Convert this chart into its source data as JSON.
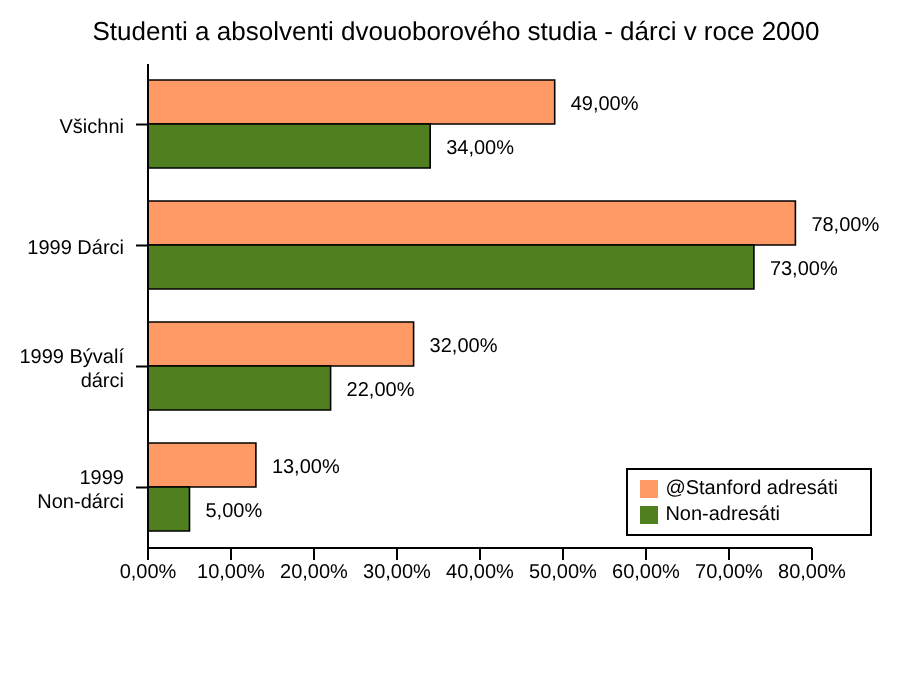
{
  "chart_data": {
    "type": "bar",
    "orientation": "horizontal",
    "title": "Studenti a absolventi dvouoborového studia - dárci v roce 2000",
    "categories": [
      "Všichni",
      "1999 Dárci",
      "1999 Bývalí dárci",
      "1999 Non-dárci"
    ],
    "series": [
      {
        "name": "@Stanford adresáti",
        "color": "#ff9966",
        "values": [
          49,
          78,
          32,
          13
        ],
        "value_labels": [
          "49,00%",
          "78,00%",
          "32,00%",
          "13,00%"
        ]
      },
      {
        "name": "Non-adresáti",
        "color": "#4f7f1f",
        "values": [
          34,
          73,
          22,
          5
        ],
        "value_labels": [
          "34,00%",
          "73,00%",
          "22,00%",
          "5,00%"
        ]
      }
    ],
    "xlim": [
      0,
      80
    ],
    "xticks": [
      {
        "value": 0,
        "label": "0,00%"
      },
      {
        "value": 10,
        "label": "10,00%"
      },
      {
        "value": 20,
        "label": "20,00%"
      },
      {
        "value": 30,
        "label": "30,00%"
      },
      {
        "value": 40,
        "label": "40,00%"
      },
      {
        "value": 50,
        "label": "50,00%"
      },
      {
        "value": 60,
        "label": "60,00%"
      },
      {
        "value": 70,
        "label": "70,00%"
      },
      {
        "value": 80,
        "label": "80,00%"
      }
    ],
    "grid": false,
    "legend": "bottom right"
  }
}
